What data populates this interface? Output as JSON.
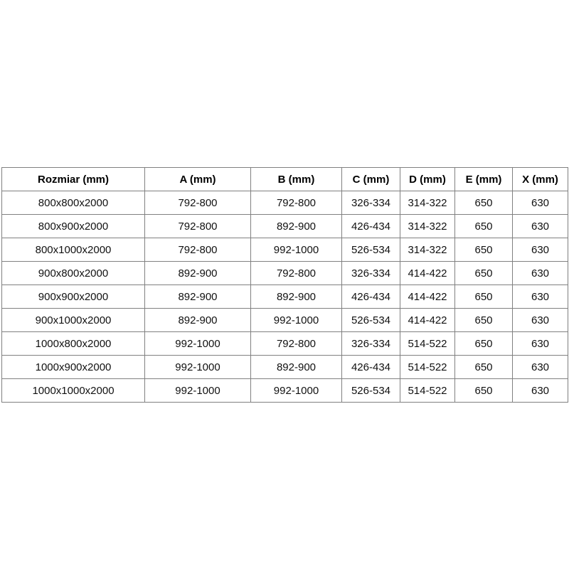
{
  "table": {
    "headers": [
      "Rozmiar (mm)",
      "A (mm)",
      "B (mm)",
      "C (mm)",
      "D (mm)",
      "E (mm)",
      "X (mm)"
    ],
    "rows": [
      [
        "800x800x2000",
        "792-800",
        "792-800",
        "326-334",
        "314-322",
        "650",
        "630"
      ],
      [
        "800x900x2000",
        "792-800",
        "892-900",
        "426-434",
        "314-322",
        "650",
        "630"
      ],
      [
        "800x1000x2000",
        "792-800",
        "992-1000",
        "526-534",
        "314-322",
        "650",
        "630"
      ],
      [
        "900x800x2000",
        "892-900",
        "792-800",
        "326-334",
        "414-422",
        "650",
        "630"
      ],
      [
        "900x900x2000",
        "892-900",
        "892-900",
        "426-434",
        "414-422",
        "650",
        "630"
      ],
      [
        "900x1000x2000",
        "892-900",
        "992-1000",
        "526-534",
        "414-422",
        "650",
        "630"
      ],
      [
        "1000x800x2000",
        "992-1000",
        "792-800",
        "326-334",
        "514-522",
        "650",
        "630"
      ],
      [
        "1000x900x2000",
        "992-1000",
        "892-900",
        "426-434",
        "514-522",
        "650",
        "630"
      ],
      [
        "1000x1000x2000",
        "992-1000",
        "992-1000",
        "526-534",
        "514-522",
        "650",
        "630"
      ]
    ]
  },
  "colors": {
    "border": "#808080",
    "header_text": "#000000",
    "cell_text": "#111111",
    "background": "#ffffff"
  }
}
